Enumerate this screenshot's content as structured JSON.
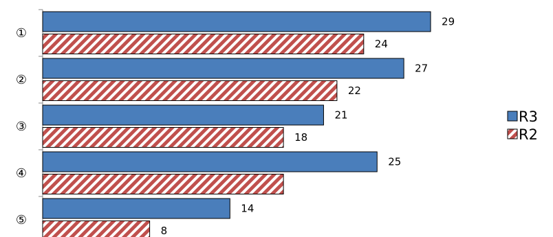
{
  "chart_data": {
    "type": "bar",
    "orientation": "horizontal",
    "categories": [
      "①",
      "②",
      "③",
      "④",
      "⑤"
    ],
    "series": [
      {
        "name": "R3",
        "values": [
          29,
          27,
          21,
          25,
          14
        ],
        "color": "#4a7ebb",
        "pattern": "solid"
      },
      {
        "name": "R2",
        "values": [
          24,
          22,
          18,
          18,
          8
        ],
        "color": "#c0504d",
        "pattern": "diagonal-stripes"
      }
    ],
    "data_labels": {
      "R3": [
        "29",
        "27",
        "21",
        "25",
        "14"
      ],
      "R2": [
        "24",
        "22",
        "18",
        "",
        "8"
      ]
    },
    "title": "",
    "xlabel": "",
    "ylabel": "",
    "xlim": [
      0,
      30
    ],
    "grid": false,
    "legend": "right"
  }
}
